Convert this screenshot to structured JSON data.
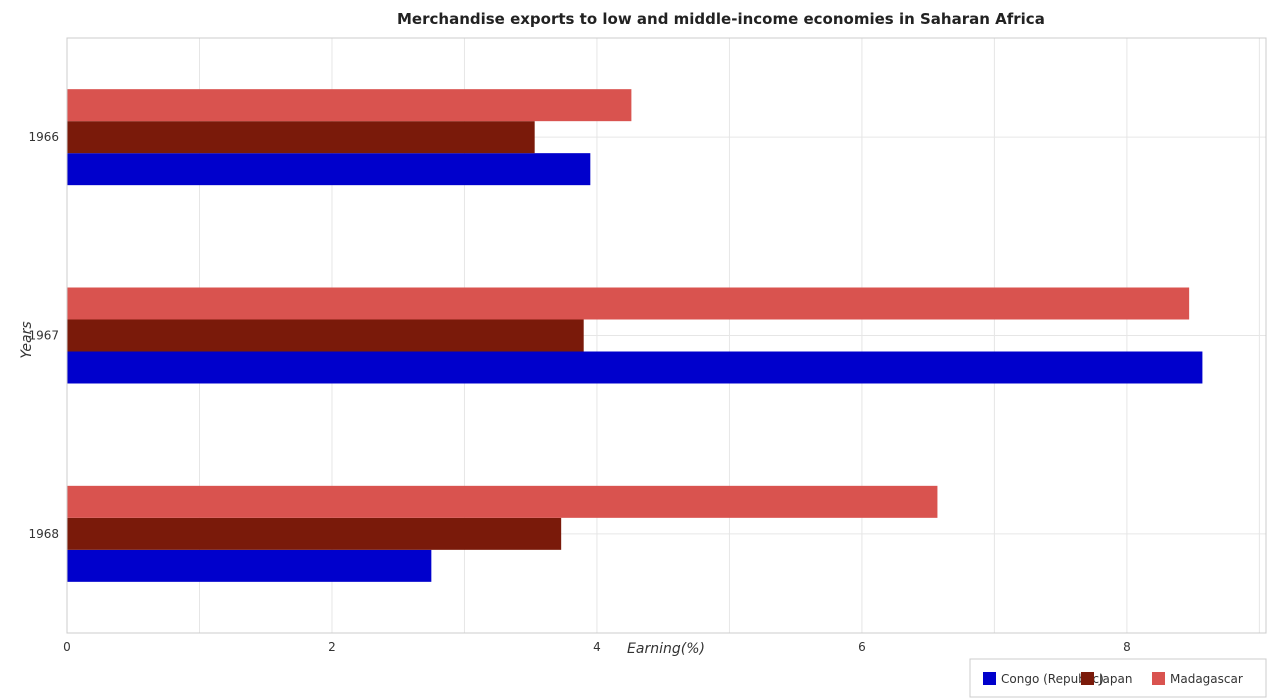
{
  "chart_data": {
    "type": "bar",
    "orientation": "horizontal",
    "title": "Merchandise exports to low and middle-income economies in Saharan Africa",
    "xlabel": "Earning(%)",
    "ylabel": "Years",
    "categories": [
      "1966",
      "1967",
      "1968"
    ],
    "series": [
      {
        "name": "Congo (Republic)",
        "color": "#0000cc",
        "values": [
          3.95,
          8.57,
          2.75
        ]
      },
      {
        "name": "Japan",
        "color": "#7a1a0a",
        "values": [
          3.53,
          3.9,
          3.73
        ]
      },
      {
        "name": "Madagascar",
        "color": "#d9534f",
        "values": [
          4.26,
          8.47,
          6.57
        ]
      }
    ],
    "xlim": [
      0,
      9.05
    ],
    "xticks": [
      "0",
      "2",
      "4",
      "6",
      "8"
    ],
    "grid": true,
    "legend_position": "bottom-right"
  }
}
